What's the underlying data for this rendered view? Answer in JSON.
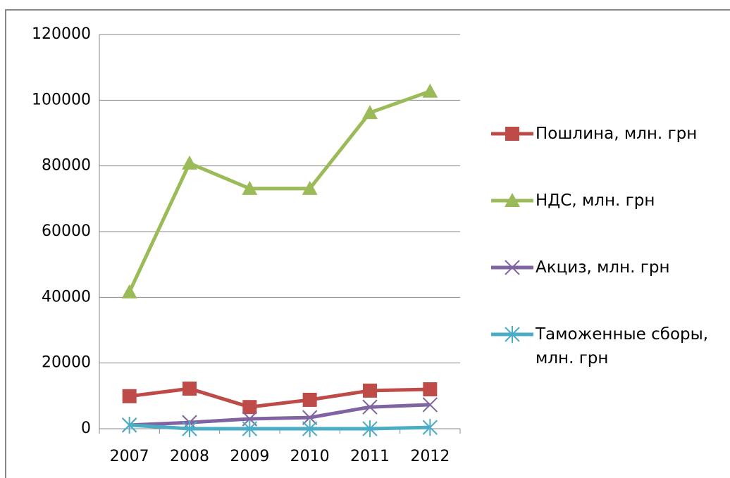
{
  "chart_data": {
    "type": "line",
    "categories": [
      "2007",
      "2008",
      "2009",
      "2010",
      "2011",
      "2012"
    ],
    "series": [
      {
        "name": "Пошлина, млн. грн",
        "color": "#be4b48",
        "marker": "square",
        "values": [
          9900,
          12200,
          6600,
          8800,
          11600,
          12000
        ]
      },
      {
        "name": "НДС, млн. грн",
        "color": "#9bbb59",
        "marker": "triangle",
        "values": [
          41600,
          80800,
          73100,
          73100,
          96200,
          102700
        ]
      },
      {
        "name": "Акциз, млн. грн",
        "color": "#8064a2",
        "marker": "x",
        "values": [
          1100,
          1900,
          3000,
          3400,
          6600,
          7300
        ]
      },
      {
        "name": "Таможенные сборы, млн. грн",
        "color": "#4bacc6",
        "marker": "asterisk",
        "values": [
          1100,
          0,
          0,
          0,
          0,
          400
        ]
      }
    ],
    "ylim": [
      0,
      120000
    ],
    "yticks": [
      0,
      20000,
      40000,
      60000,
      80000,
      100000,
      120000
    ],
    "grid": true,
    "legend": "right"
  }
}
